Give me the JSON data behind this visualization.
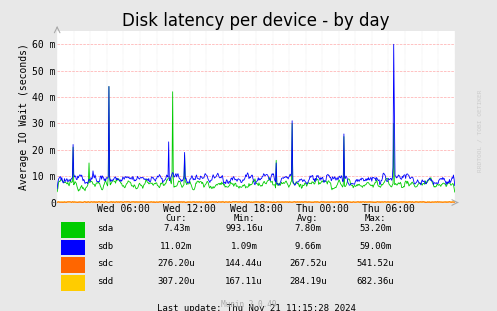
{
  "title": "Disk latency per device - by day",
  "ylabel": "Average IO Wait (seconds)",
  "background_color": "#e8e8e8",
  "plot_bg_color": "#ffffff",
  "title_fontsize": 12,
  "tick_fontsize": 7,
  "yticks": [
    0,
    10,
    20,
    30,
    40,
    50,
    60
  ],
  "ytick_labels": [
    "0",
    "10 m",
    "20 m",
    "30 m",
    "40 m",
    "50 m",
    "60 m"
  ],
  "ylim": [
    0,
    65
  ],
  "xtick_labels": [
    "Wed 06:00",
    "Wed 12:00",
    "Wed 18:00",
    "Thu 00:00",
    "Thu 06:00"
  ],
  "colors": {
    "sda": "#00cc00",
    "sdb": "#0000ff",
    "sdc": "#ff6600",
    "sdd": "#ffcc00"
  },
  "stats_header": [
    "Cur:",
    "Min:",
    "Avg:",
    "Max:"
  ],
  "stats": [
    {
      "name": "sda",
      "cur": "7.43m",
      "min": "993.16u",
      "avg": "7.80m",
      "max": "53.20m"
    },
    {
      "name": "sdb",
      "cur": "11.02m",
      "min": "1.09m",
      "avg": "9.66m",
      "max": "59.00m"
    },
    {
      "name": "sdc",
      "cur": "276.20u",
      "min": "144.44u",
      "avg": "267.52u",
      "max": "541.52u"
    },
    {
      "name": "sdd",
      "cur": "307.20u",
      "min": "167.11u",
      "avg": "284.19u",
      "max": "682.36u"
    }
  ],
  "last_update": "Last update: Thu Nov 21 11:15:28 2024",
  "munin_version": "Munin 2.0.49",
  "watermark": "RRDTOOL / TOBI OETIKER",
  "num_points": 600
}
